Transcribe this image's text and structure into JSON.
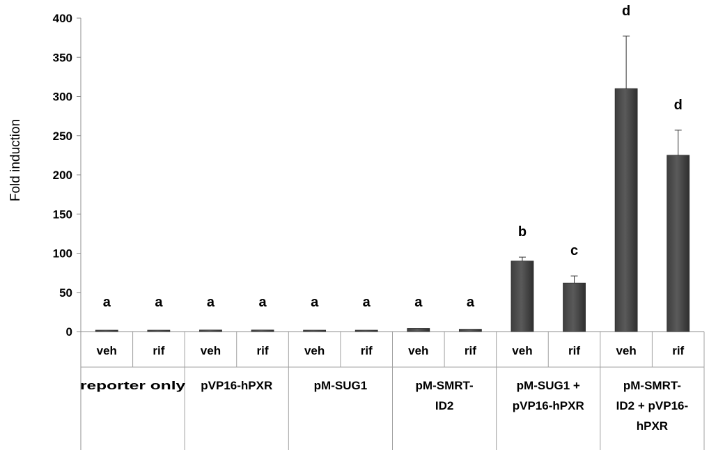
{
  "chart_data": {
    "type": "bar",
    "title": "",
    "ylabel": "Fold induction",
    "ylim": [
      0,
      400
    ],
    "yticks": [
      "0",
      "50",
      "100",
      "150",
      "200",
      "250",
      "300",
      "350",
      "400"
    ],
    "ytick_values": [
      0,
      50,
      100,
      150,
      200,
      250,
      300,
      350,
      400
    ],
    "bar_color": "#5a5a5a",
    "groups": [
      {
        "label_lines": [
          "reporter only"
        ],
        "label_overflow": true
      },
      {
        "label_lines": [
          "pVP16-hPXR"
        ]
      },
      {
        "label_lines": [
          "pM-SUG1"
        ]
      },
      {
        "label_lines": [
          "pM-SMRT-",
          "ID2"
        ]
      },
      {
        "label_lines": [
          "pM-SUG1 +",
          "pVP16-hPXR"
        ]
      },
      {
        "label_lines": [
          "pM-SMRT-",
          "ID2 + pVP16-",
          "hPXR"
        ]
      }
    ],
    "bars": [
      {
        "group": 0,
        "treatment": "veh",
        "value": 1,
        "error": 0,
        "sig": "a"
      },
      {
        "group": 0,
        "treatment": "rif",
        "value": 1,
        "error": 0,
        "sig": "a"
      },
      {
        "group": 1,
        "treatment": "veh",
        "value": 2,
        "error": 0,
        "sig": "a"
      },
      {
        "group": 1,
        "treatment": "rif",
        "value": 2,
        "error": 0,
        "sig": "a"
      },
      {
        "group": 2,
        "treatment": "veh",
        "value": 1,
        "error": 0,
        "sig": "a"
      },
      {
        "group": 2,
        "treatment": "rif",
        "value": 1,
        "error": 0,
        "sig": "a"
      },
      {
        "group": 3,
        "treatment": "veh",
        "value": 4,
        "error": 0,
        "sig": "a"
      },
      {
        "group": 3,
        "treatment": "rif",
        "value": 3,
        "error": 0,
        "sig": "a"
      },
      {
        "group": 4,
        "treatment": "veh",
        "value": 90,
        "error": 5,
        "sig": "b"
      },
      {
        "group": 4,
        "treatment": "rif",
        "value": 62,
        "error": 9,
        "sig": "c"
      },
      {
        "group": 5,
        "treatment": "veh",
        "value": 310,
        "error": 67,
        "sig": "d"
      },
      {
        "group": 5,
        "treatment": "rif",
        "value": 225,
        "error": 32,
        "sig": "d"
      }
    ]
  }
}
